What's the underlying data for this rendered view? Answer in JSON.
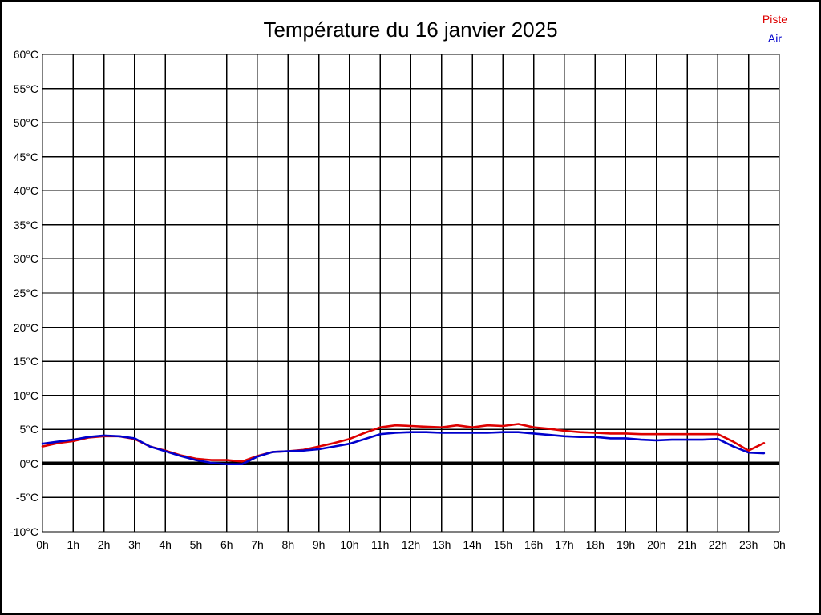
{
  "title": "Température du 16 janvier 2025",
  "legend": {
    "position": "top-right",
    "items": [
      {
        "label": "Piste",
        "color": "#dd0000"
      },
      {
        "label": "Air",
        "color": "#0000cc"
      }
    ]
  },
  "chart_data": {
    "type": "line",
    "title": "Température du 16 janvier 2025",
    "xlabel": "",
    "ylabel": "",
    "x_unit": "hours",
    "xlim": [
      0,
      24
    ],
    "ylim": [
      -10,
      60
    ],
    "y_tick_step": 5,
    "y_tick_values": [
      60,
      55,
      50,
      45,
      40,
      35,
      30,
      25,
      20,
      15,
      10,
      5,
      0,
      -5,
      -10
    ],
    "y_tick_labels": [
      "60°C",
      "55°C",
      "50°C",
      "45°C",
      "40°C",
      "35°C",
      "30°C",
      "25°C",
      "20°C",
      "15°C",
      "10°C",
      "5°C",
      "0°C",
      "-5°C",
      "-10°C"
    ],
    "x_tick_values": [
      0,
      1,
      2,
      3,
      4,
      5,
      6,
      7,
      8,
      9,
      10,
      11,
      12,
      13,
      14,
      15,
      16,
      17,
      18,
      19,
      20,
      21,
      22,
      23,
      24
    ],
    "x_tick_labels": [
      "0h",
      "1h",
      "2h",
      "3h",
      "4h",
      "5h",
      "6h",
      "7h",
      "8h",
      "9h",
      "10h",
      "11h",
      "12h",
      "13h",
      "14h",
      "15h",
      "16h",
      "17h",
      "18h",
      "19h",
      "20h",
      "21h",
      "22h",
      "23h",
      "0h"
    ],
    "grid": true,
    "zero_line": true,
    "zero_line_color": "#000000",
    "grid_color": "#000000",
    "x": [
      0,
      0.5,
      1,
      1.5,
      2,
      2.5,
      3,
      3.5,
      4,
      4.5,
      5,
      5.5,
      6,
      6.5,
      7,
      7.5,
      8,
      8.5,
      9,
      9.5,
      10,
      10.5,
      11,
      11.5,
      12,
      12.5,
      13,
      13.5,
      14,
      14.5,
      15,
      15.5,
      16,
      16.5,
      17,
      17.5,
      18,
      18.5,
      19,
      19.5,
      20,
      20.5,
      21,
      21.5,
      22,
      22.5,
      23,
      23.5
    ],
    "series": [
      {
        "name": "Piste",
        "color": "#dd0000",
        "values": [
          2.5,
          3.0,
          3.3,
          3.8,
          4.0,
          4.0,
          3.6,
          2.5,
          1.9,
          1.2,
          0.7,
          0.5,
          0.5,
          0.3,
          1.1,
          1.7,
          1.8,
          2.0,
          2.5,
          3.0,
          3.6,
          4.5,
          5.3,
          5.6,
          5.5,
          5.4,
          5.3,
          5.6,
          5.3,
          5.6,
          5.5,
          5.8,
          5.3,
          5.1,
          4.8,
          4.6,
          4.5,
          4.4,
          4.4,
          4.3,
          4.3,
          4.3,
          4.3,
          4.3,
          4.3,
          3.2,
          1.9,
          3.0
        ]
      },
      {
        "name": "Air",
        "color": "#0000cc",
        "values": [
          2.9,
          3.2,
          3.5,
          3.9,
          4.1,
          4.0,
          3.7,
          2.5,
          1.8,
          1.1,
          0.5,
          0.1,
          -0.1,
          -0.1,
          1.0,
          1.7,
          1.8,
          1.9,
          2.1,
          2.5,
          2.9,
          3.6,
          4.3,
          4.5,
          4.6,
          4.6,
          4.5,
          4.5,
          4.5,
          4.5,
          4.6,
          4.6,
          4.4,
          4.2,
          4.0,
          3.9,
          3.9,
          3.7,
          3.7,
          3.5,
          3.4,
          3.5,
          3.5,
          3.5,
          3.6,
          2.5,
          1.6,
          1.5
        ]
      }
    ]
  }
}
